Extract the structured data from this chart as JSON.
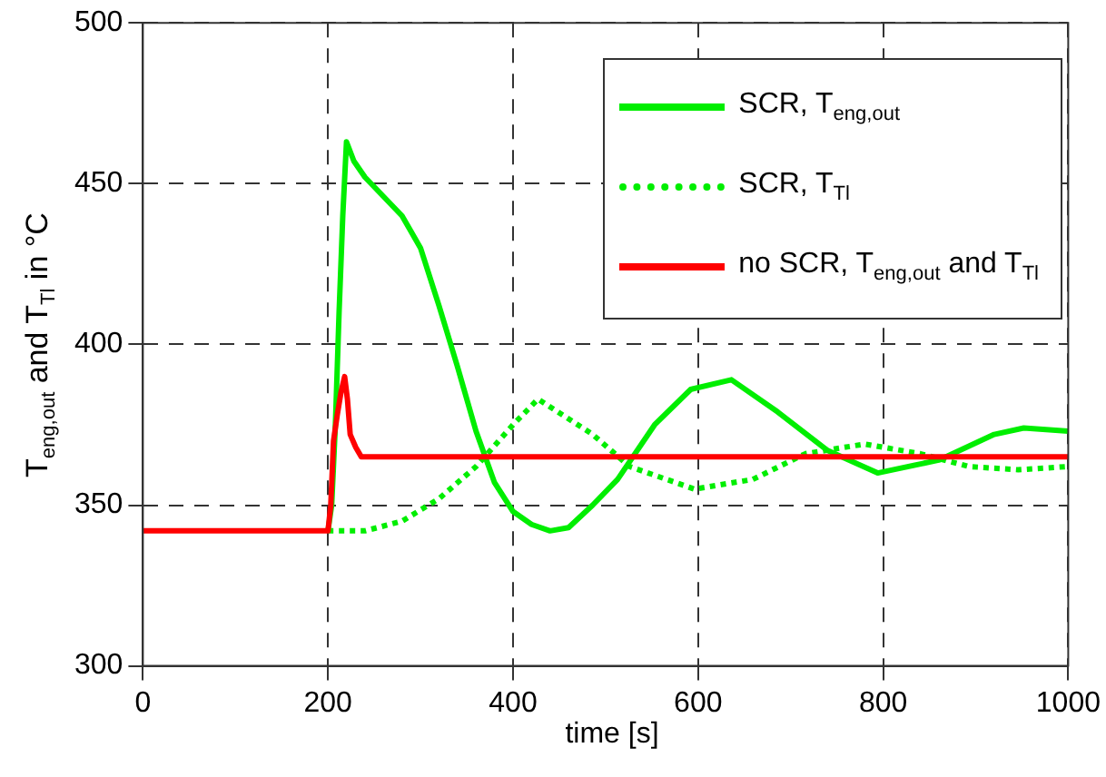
{
  "chart_data": {
    "type": "line",
    "xlabel": "time [s]",
    "ylabel": "T$_{eng,out}$  and  T$_{Tl}$  in °C",
    "xlim": [
      0,
      1000
    ],
    "xticks": [
      0,
      200,
      400,
      600,
      800,
      1000
    ],
    "ylim": [
      300,
      500
    ],
    "yticks": [
      300,
      350,
      400,
      450,
      500
    ],
    "grid": true,
    "legend": "top right",
    "marker": "none",
    "series": [
      {
        "name": "SCR, T$_{eng,out}$",
        "color": "#00ee00",
        "line_style": "solid",
        "x": [
          200,
          204,
          208,
          212,
          216,
          220,
          228,
          240,
          260,
          280,
          300,
          320,
          340,
          360,
          380,
          400,
          420,
          440,
          460,
          486,
          513,
          553,
          592,
          636,
          686,
          740,
          794,
          860,
          920,
          952,
          1000
        ],
        "values": [
          342,
          350,
          375,
          410,
          440,
          463,
          457,
          452,
          446,
          440,
          430,
          412,
          393,
          373,
          357,
          348,
          344,
          342,
          343,
          350,
          358,
          375,
          386,
          389,
          379,
          367,
          360,
          364,
          372,
          374,
          373
        ]
      },
      {
        "name": "SCR, T$_{Tl}$",
        "color": "#00ee00",
        "line_style": "dotted",
        "x": [
          200,
          240,
          280,
          320,
          360,
          400,
          427,
          486,
          526,
          596,
          659,
          716,
          780,
          840,
          893,
          946,
          1000
        ],
        "values": [
          342,
          342,
          345,
          352,
          362,
          375,
          383,
          372,
          362,
          355,
          358,
          366,
          369,
          366,
          362,
          361,
          362
        ]
      },
      {
        "name": "no SCR, T$_{eng,out}$ and T$_{Tl}$",
        "color": "#ff0000",
        "line_style": "solid",
        "x": [
          0,
          200,
          203,
          206,
          210,
          214,
          218,
          221,
          224,
          230,
          236,
          1000
        ],
        "values": [
          342,
          342,
          350,
          370,
          378,
          385,
          390,
          383,
          372,
          368,
          365,
          365
        ]
      }
    ]
  }
}
